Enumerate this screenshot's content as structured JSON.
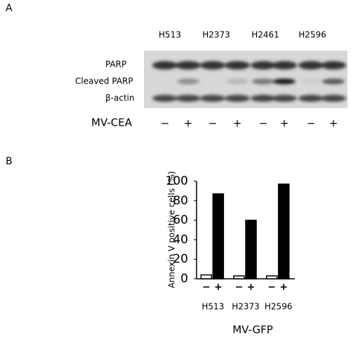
{
  "panel_a": {
    "label": "A",
    "cell_lines": [
      "H513",
      "H2373",
      "H2461",
      "H2596"
    ],
    "row_labels": [
      "PARP",
      "Cleaved PARP",
      "β-actin"
    ],
    "treatment_label": "MV-CEA",
    "treatment_signs": [
      "−",
      "+",
      "−",
      "+",
      "−",
      "+",
      "−",
      "+"
    ]
  },
  "panel_b": {
    "label": "B"
  },
  "chart_data": {
    "type": "bar",
    "y_label": "Annexin V positive cells (%)",
    "x_label": "MV-GFP",
    "categories": [
      "H513",
      "H2373",
      "H2596"
    ],
    "series": [
      {
        "name": "−",
        "color": "#ffffff",
        "values": [
          4,
          3,
          3
        ]
      },
      {
        "name": "+",
        "color": "#000000",
        "values": [
          87,
          60,
          97
        ]
      }
    ],
    "ylim": [
      0,
      100
    ],
    "yticks": [
      0,
      20,
      40,
      60,
      80,
      100
    ]
  }
}
